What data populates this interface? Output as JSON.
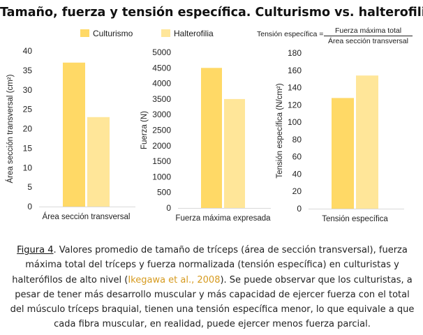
{
  "title": "Tamaño, fuerza y tensión específica. Culturismo vs. halterofilia",
  "legend": [
    {
      "label": "Culturismo",
      "color": "#ffd966"
    },
    {
      "label": "Halterofilia",
      "color": "#ffe699"
    }
  ],
  "formula": {
    "lhs": "Tensión específica =",
    "numerator": "Fuerza máxima total",
    "denominator": "Área sección transversal"
  },
  "chart_data": [
    {
      "type": "bar",
      "categories": [
        "Área sección transversal"
      ],
      "series": [
        {
          "name": "Culturismo",
          "values": [
            37
          ]
        },
        {
          "name": "Halterofilia",
          "values": [
            23
          ]
        }
      ],
      "ylabel": "Área sección transversal (cm²)",
      "xlabel": "",
      "ylim": [
        0,
        40
      ],
      "yticks": [
        0,
        5,
        10,
        15,
        20,
        25,
        30,
        35,
        40
      ],
      "grid": false
    },
    {
      "type": "bar",
      "categories": [
        "Fuerza máxima expresada"
      ],
      "series": [
        {
          "name": "Culturismo",
          "values": [
            4500
          ]
        },
        {
          "name": "Halterofilia",
          "values": [
            3500
          ]
        }
      ],
      "ylabel": "Fuerza (N)",
      "xlabel": "",
      "ylim": [
        0,
        5000
      ],
      "yticks": [
        0,
        500,
        1000,
        1500,
        2000,
        2500,
        3000,
        3500,
        4000,
        4500,
        5000
      ],
      "grid": false
    },
    {
      "type": "bar",
      "categories": [
        "Tensión específica"
      ],
      "series": [
        {
          "name": "Culturismo",
          "values": [
            128
          ]
        },
        {
          "name": "Halterofilia",
          "values": [
            154
          ]
        }
      ],
      "ylabel": "Tensión específica (N/cm²)",
      "xlabel": "",
      "ylim": [
        0,
        180
      ],
      "yticks": [
        0,
        20,
        40,
        60,
        80,
        100,
        120,
        140,
        160,
        180
      ],
      "grid": false
    }
  ],
  "caption": {
    "figure_label": "Figura 4",
    "text_before_ref": ". Valores promedio de tamaño de tríceps (área de sección transversal), fuerza máxima total del tríceps y fuerza normalizada (tensión específica) en culturistas y halterófilos de alto nivel (",
    "ref": "Ikegawa et al., 2008",
    "text_after_ref": "). Se puede observar que los culturistas, a pesar de tener más desarrollo muscular y más capacidad de ejercer fuerza con el total del músculo tríceps braquial, tienen una tensión específica menor, lo que equivale a que cada fibra muscular, en realidad, puede ejercer menos fuerza parcial."
  }
}
